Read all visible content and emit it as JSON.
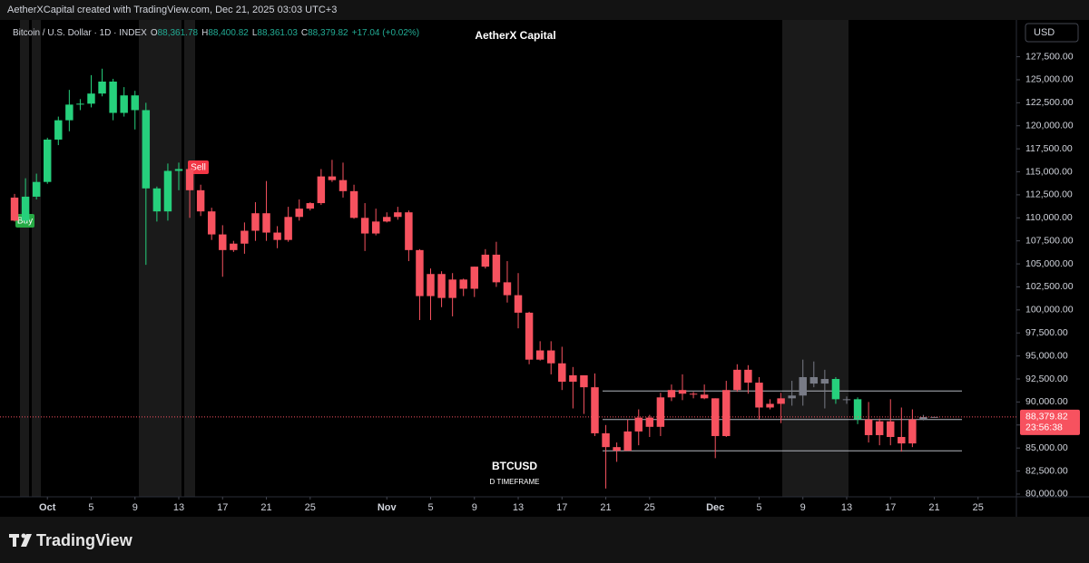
{
  "header": {
    "credit": "AetherXCapital created with TradingView.com, Dec 21, 2025 03:03 UTC+3",
    "symbol": "Bitcoin / U.S. Dollar · 1D · INDEX",
    "o_key": "O",
    "open": "88,361.78",
    "h_key": "H",
    "high": "88,400.82",
    "l_key": "L",
    "low": "88,361.03",
    "c_key": "C",
    "close": "88,379.82",
    "change": "+17.04 (+0.02%)",
    "currency": "USD",
    "brand": "TradingView"
  },
  "chart_data": {
    "type": "candlestick",
    "title": "AetherX Capital",
    "subtitle": "D TIMEFRAME",
    "x": [
      "2025-09-28",
      "2025-09-29",
      "2025-09-30",
      "2025-10-01",
      "2025-10-02",
      "2025-10-03",
      "2025-10-04",
      "2025-10-05",
      "2025-10-06",
      "2025-10-07",
      "2025-10-08",
      "2025-10-09",
      "2025-10-10",
      "2025-10-11",
      "2025-10-12",
      "2025-10-13",
      "2025-10-14",
      "2025-10-15",
      "2025-10-16",
      "2025-10-17",
      "2025-10-18",
      "2025-10-19",
      "2025-10-20",
      "2025-10-21",
      "2025-10-22",
      "2025-10-23",
      "2025-10-24",
      "2025-10-25",
      "2025-10-26",
      "2025-10-27",
      "2025-10-28",
      "2025-10-29",
      "2025-10-30",
      "2025-10-31",
      "2025-11-01",
      "2025-11-02",
      "2025-11-03",
      "2025-11-04",
      "2025-11-05",
      "2025-11-06",
      "2025-11-07",
      "2025-11-08",
      "2025-11-09",
      "2025-11-10",
      "2025-11-11",
      "2025-11-12",
      "2025-11-13",
      "2025-11-14",
      "2025-11-15",
      "2025-11-16",
      "2025-11-17",
      "2025-11-18",
      "2025-11-19",
      "2025-11-20",
      "2025-11-21",
      "2025-11-22",
      "2025-11-23",
      "2025-11-24",
      "2025-11-25",
      "2025-11-26",
      "2025-11-27",
      "2025-11-28",
      "2025-11-29",
      "2025-11-30",
      "2025-12-01",
      "2025-12-02",
      "2025-12-03",
      "2025-12-04",
      "2025-12-05",
      "2025-12-06",
      "2025-12-07",
      "2025-12-08",
      "2025-12-09",
      "2025-12-10",
      "2025-12-11",
      "2025-12-12",
      "2025-12-13",
      "2025-12-14",
      "2025-12-15",
      "2025-12-16",
      "2025-12-17",
      "2025-12-18",
      "2025-12-19",
      "2025-12-20",
      "2025-12-21"
    ],
    "series": [
      {
        "name": "BTCUSD",
        "open": [
          112200,
          109700,
          112300,
          113900,
          118500,
          120600,
          122300,
          122400,
          123500,
          124800,
          121400,
          123300,
          121700,
          113200,
          110700,
          115100,
          115300,
          113000,
          110700,
          108200,
          106500,
          107200,
          108600,
          110500,
          108400,
          107600,
          110100,
          111000,
          111600,
          114500,
          114100,
          112900,
          110000,
          108300,
          109600,
          110100,
          110600,
          106500,
          101500,
          103900,
          101300,
          103300,
          102300,
          104700,
          106000,
          103000,
          101600,
          99700,
          94600,
          95600,
          94200,
          92200,
          92900,
          91600,
          86600,
          85100,
          84700,
          86800,
          88300,
          87300,
          90500,
          91300,
          90900,
          90800,
          90400,
          86300,
          91300,
          93500,
          92100,
          89400,
          89800,
          90400,
          90700,
          92700,
          92000,
          92500,
          90300,
          90300,
          88100,
          86400,
          87900,
          86200,
          85500,
          88100,
          88361.78
        ],
        "high": [
          112600,
          114300,
          114800,
          118700,
          121000,
          123900,
          122900,
          125500,
          126200,
          125100,
          124200,
          123800,
          122500,
          113400,
          115900,
          116000,
          115400,
          113600,
          111100,
          109200,
          107500,
          109500,
          111700,
          114000,
          109100,
          111200,
          112000,
          111700,
          115300,
          116300,
          116000,
          113600,
          111600,
          111000,
          110600,
          111200,
          110800,
          106600,
          104500,
          104200,
          104000,
          103400,
          104700,
          106600,
          107400,
          105300,
          104000,
          99800,
          96600,
          96600,
          96000,
          93800,
          92900,
          93100,
          87500,
          85600,
          88100,
          89200,
          88600,
          91000,
          91900,
          93000,
          91100,
          91900,
          90400,
          92300,
          94100,
          94000,
          92700,
          90300,
          91000,
          92300,
          94600,
          94400,
          93500,
          92700,
          90600,
          90500,
          90000,
          88200,
          90300,
          89400,
          89200,
          88600,
          88400.82
        ],
        "low": [
          109600,
          109300,
          112000,
          113700,
          117900,
          119400,
          121700,
          122000,
          123200,
          120600,
          121000,
          119600,
          104900,
          109600,
          109700,
          113000,
          110000,
          110200,
          107600,
          103600,
          106300,
          106100,
          107500,
          107500,
          106700,
          107400,
          109700,
          110800,
          111400,
          113900,
          112200,
          109900,
          106400,
          108100,
          109500,
          109800,
          105300,
          98900,
          98900,
          100300,
          99300,
          101500,
          101400,
          104500,
          102500,
          100800,
          98000,
          94100,
          94500,
          93000,
          91300,
          89300,
          88700,
          86300,
          80600,
          83500,
          84700,
          85300,
          86200,
          86300,
          90100,
          90200,
          90400,
          90300,
          83900,
          86200,
          91100,
          90900,
          88100,
          89200,
          87700,
          89600,
          89600,
          91600,
          89300,
          89800,
          89800,
          87600,
          85600,
          85300,
          85300,
          84600,
          85100,
          88000,
          88361.03
        ],
        "close": [
          109700,
          112300,
          113900,
          118500,
          120600,
          122300,
          122400,
          123500,
          124800,
          121400,
          123300,
          121700,
          113200,
          110700,
          115100,
          115300,
          113000,
          110700,
          108200,
          106500,
          107200,
          108600,
          110500,
          108400,
          107600,
          110100,
          111000,
          111600,
          114500,
          114100,
          112900,
          110000,
          108300,
          109600,
          110100,
          110600,
          106500,
          101500,
          103900,
          101300,
          103300,
          102300,
          104700,
          106000,
          103000,
          101600,
          99700,
          94600,
          95600,
          94200,
          92200,
          92900,
          91600,
          86600,
          85100,
          84700,
          86800,
          88300,
          87300,
          90500,
          91300,
          90900,
          90800,
          90400,
          86300,
          91300,
          93500,
          92100,
          89400,
          89800,
          90400,
          90700,
          92700,
          92000,
          92500,
          90300,
          90300,
          88100,
          86400,
          87900,
          86200,
          85500,
          88100,
          88361.78,
          88379.82
        ],
        "colors": [
          "#f7525f",
          "#26d07c",
          "#26d07c",
          "#26d07c",
          "#26d07c",
          "#26d07c",
          "#26d07c",
          "#26d07c",
          "#26d07c",
          "#26d07c",
          "#26d07c",
          "#26d07c",
          "#26d07c",
          "#26d07c",
          "#26d07c",
          "#26d07c",
          "#f7525f",
          "#f7525f",
          "#f7525f",
          "#f7525f",
          "#f7525f",
          "#f7525f",
          "#f7525f",
          "#f7525f",
          "#f7525f",
          "#f7525f",
          "#f7525f",
          "#f7525f",
          "#f7525f",
          "#f7525f",
          "#f7525f",
          "#f7525f",
          "#f7525f",
          "#f7525f",
          "#f7525f",
          "#f7525f",
          "#f7525f",
          "#f7525f",
          "#f7525f",
          "#f7525f",
          "#f7525f",
          "#f7525f",
          "#f7525f",
          "#f7525f",
          "#f7525f",
          "#f7525f",
          "#f7525f",
          "#f7525f",
          "#f7525f",
          "#f7525f",
          "#f7525f",
          "#f7525f",
          "#f7525f",
          "#f7525f",
          "#f7525f",
          "#f7525f",
          "#f7525f",
          "#f7525f",
          "#f7525f",
          "#f7525f",
          "#f7525f",
          "#f7525f",
          "#f7525f",
          "#f7525f",
          "#f7525f",
          "#f7525f",
          "#f7525f",
          "#f7525f",
          "#f7525f",
          "#f7525f",
          "#f7525f",
          "#787b86",
          "#787b86",
          "#787b86",
          "#787b86",
          "#26d07c",
          "#787b86",
          "#26d07c",
          "#f7525f",
          "#f7525f",
          "#f7525f",
          "#f7525f",
          "#f7525f",
          "#787b86",
          "#787b86"
        ]
      }
    ],
    "annotations": [
      "Buy",
      "Sell"
    ],
    "levels": [
      91200,
      88100,
      84700
    ],
    "level_color": "#b2b5be",
    "last_price_label": "88,379.82",
    "countdown": "23:56:38",
    "last_price_color": "#f7525f",
    "grid": false,
    "xlim": [
      "2025-09-27T12:00:00Z",
      "2025-12-28T12:00:00Z"
    ],
    "xticks": [
      {
        "value": "2025-10-01",
        "label": "Oct"
      },
      {
        "value": "2025-10-05",
        "label": "5"
      },
      {
        "value": "2025-10-09",
        "label": "9"
      },
      {
        "value": "2025-10-13",
        "label": "13"
      },
      {
        "value": "2025-10-17",
        "label": "17"
      },
      {
        "value": "2025-10-21",
        "label": "21"
      },
      {
        "value": "2025-10-25",
        "label": "25"
      },
      {
        "value": "2025-11-01",
        "label": "Nov"
      },
      {
        "value": "2025-11-05",
        "label": "5"
      },
      {
        "value": "2025-11-09",
        "label": "9"
      },
      {
        "value": "2025-11-13",
        "label": "13"
      },
      {
        "value": "2025-11-17",
        "label": "17"
      },
      {
        "value": "2025-11-21",
        "label": "21"
      },
      {
        "value": "2025-11-25",
        "label": "25"
      },
      {
        "value": "2025-12-01",
        "label": "Dec"
      },
      {
        "value": "2025-12-05",
        "label": "5"
      },
      {
        "value": "2025-12-09",
        "label": "9"
      },
      {
        "value": "2025-12-13",
        "label": "13"
      },
      {
        "value": "2025-12-17",
        "label": "17"
      },
      {
        "value": "2025-12-21",
        "label": "21"
      },
      {
        "value": "2025-12-25",
        "label": "25"
      }
    ],
    "ylim": [
      79700,
      131200
    ],
    "yticks": [
      {
        "value": 80000,
        "label": "80,000.00"
      },
      {
        "value": 82500,
        "label": "82,500.00"
      },
      {
        "value": 85000,
        "label": "85,000.00"
      },
      {
        "value": 87500,
        "label": "87,500.00"
      },
      {
        "value": 90000,
        "label": "90,000.00"
      },
      {
        "value": 92500,
        "label": "92,500.00"
      },
      {
        "value": 95000,
        "label": "95,000.00"
      },
      {
        "value": 97500,
        "label": "97,500.00"
      },
      {
        "value": 100000,
        "label": "100,000.00"
      },
      {
        "value": 102500,
        "label": "102,500.00"
      },
      {
        "value": 105000,
        "label": "105,000.00"
      },
      {
        "value": 107500,
        "label": "107,500.00"
      },
      {
        "value": 110000,
        "label": "110,000.00"
      },
      {
        "value": 112500,
        "label": "112,500.00"
      },
      {
        "value": 115000,
        "label": "115,000.00"
      },
      {
        "value": 117500,
        "label": "117,500.00"
      },
      {
        "value": 120000,
        "label": "120,000.00"
      },
      {
        "value": 122500,
        "label": "122,500.00"
      },
      {
        "value": 125000,
        "label": "125,000.00"
      },
      {
        "value": 127500,
        "label": "127,500.00"
      }
    ]
  }
}
